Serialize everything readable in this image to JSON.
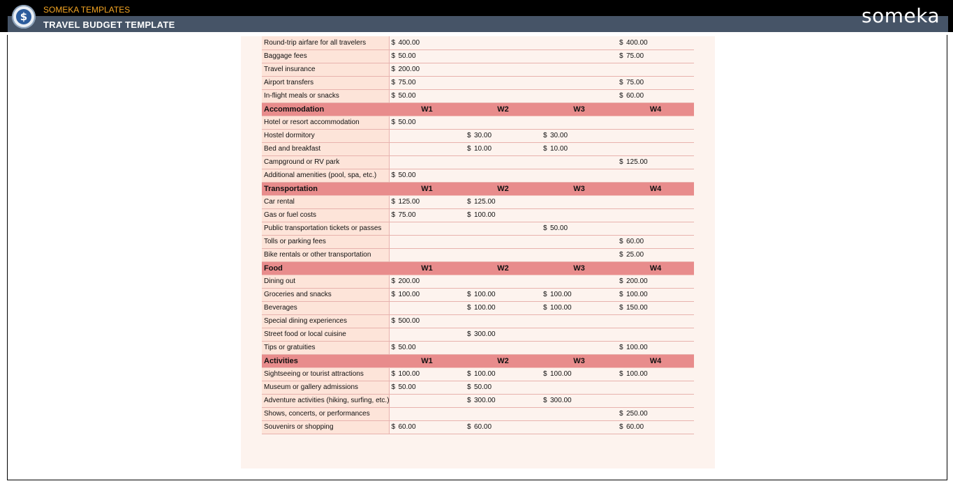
{
  "header": {
    "brand_small": "SOMEKA TEMPLATES",
    "title": "TRAVEL BUDGET TEMPLATE",
    "logo_text": "someka",
    "app_icon": "dollar-coin-icon"
  },
  "currency_symbol": "$",
  "week_labels": [
    "W1",
    "W2",
    "W3",
    "W4"
  ],
  "sections": [
    {
      "title": "",
      "rows": [
        {
          "label": "Round-trip airfare for all travelers",
          "values": [
            "400.00",
            "",
            "",
            "400.00"
          ]
        },
        {
          "label": "Baggage fees",
          "values": [
            "50.00",
            "",
            "",
            "75.00"
          ]
        },
        {
          "label": "Travel insurance",
          "values": [
            "200.00",
            "",
            "",
            ""
          ]
        },
        {
          "label": "Airport transfers",
          "values": [
            "75.00",
            "",
            "",
            "75.00"
          ]
        },
        {
          "label": "In-flight meals or snacks",
          "values": [
            "50.00",
            "",
            "",
            "60.00"
          ]
        }
      ]
    },
    {
      "title": "Accommodation",
      "rows": [
        {
          "label": "Hotel or resort accommodation",
          "values": [
            "50.00",
            "",
            "",
            ""
          ]
        },
        {
          "label": "Hostel dormitory",
          "values": [
            "",
            "30.00",
            "30.00",
            ""
          ]
        },
        {
          "label": "Bed and breakfast",
          "values": [
            "",
            "10.00",
            "10.00",
            ""
          ]
        },
        {
          "label": "Campground or RV park",
          "values": [
            "",
            "",
            "",
            "125.00"
          ]
        },
        {
          "label": "Additional amenities (pool, spa, etc.)",
          "values": [
            "50.00",
            "",
            "",
            ""
          ]
        }
      ]
    },
    {
      "title": "Transportation",
      "rows": [
        {
          "label": "Car rental",
          "values": [
            "125.00",
            "125.00",
            "",
            ""
          ]
        },
        {
          "label": "Gas or fuel costs",
          "values": [
            "75.00",
            "100.00",
            "",
            ""
          ]
        },
        {
          "label": "Public transportation tickets or passes",
          "values": [
            "",
            "",
            "50.00",
            ""
          ]
        },
        {
          "label": "Tolls or parking fees",
          "values": [
            "",
            "",
            "",
            "60.00"
          ]
        },
        {
          "label": "Bike rentals or other transportation",
          "values": [
            "",
            "",
            "",
            "25.00"
          ]
        }
      ]
    },
    {
      "title": "Food",
      "rows": [
        {
          "label": "Dining out",
          "values": [
            "200.00",
            "",
            "",
            "200.00"
          ]
        },
        {
          "label": "Groceries and snacks",
          "values": [
            "100.00",
            "100.00",
            "100.00",
            "100.00"
          ]
        },
        {
          "label": "Beverages",
          "values": [
            "",
            "100.00",
            "100.00",
            "150.00"
          ]
        },
        {
          "label": "Special dining experiences",
          "values": [
            "500.00",
            "",
            "",
            ""
          ]
        },
        {
          "label": "Street food or local cuisine",
          "values": [
            "",
            "300.00",
            "",
            ""
          ]
        },
        {
          "label": "Tips or gratuities",
          "values": [
            "50.00",
            "",
            "",
            "100.00"
          ]
        }
      ]
    },
    {
      "title": "Activities",
      "rows": [
        {
          "label": "Sightseeing or tourist attractions",
          "values": [
            "100.00",
            "100.00",
            "100.00",
            "100.00"
          ]
        },
        {
          "label": "Museum or gallery admissions",
          "values": [
            "50.00",
            "50.00",
            "",
            ""
          ]
        },
        {
          "label": "Adventure activities (hiking, surfing, etc.)",
          "values": [
            "",
            "300.00",
            "300.00",
            ""
          ]
        },
        {
          "label": "Shows, concerts, or performances",
          "values": [
            "",
            "",
            "",
            "250.00"
          ]
        },
        {
          "label": "Souvenirs or shopping",
          "values": [
            "60.00",
            "60.00",
            "",
            "60.00"
          ]
        }
      ]
    }
  ]
}
